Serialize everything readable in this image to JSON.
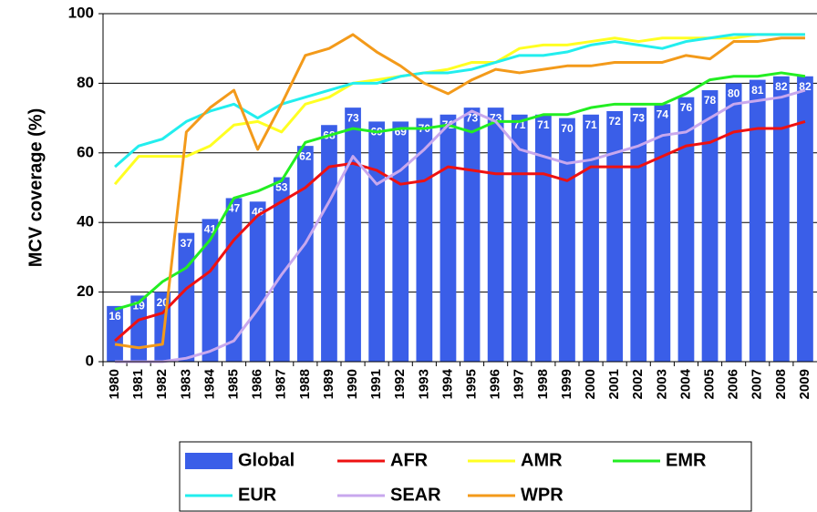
{
  "chart_data": {
    "type": "bar-line",
    "y_label": "MCV coverage (%)",
    "categories": [
      "1980",
      "1981",
      "1982",
      "1983",
      "1984",
      "1985",
      "1986",
      "1987",
      "1988",
      "1989",
      "1990",
      "1991",
      "1992",
      "1993",
      "1994",
      "1995",
      "1996",
      "1997",
      "1998",
      "1999",
      "2000",
      "2001",
      "2002",
      "2003",
      "2004",
      "2005",
      "2006",
      "2007",
      "2008",
      "2009"
    ],
    "ylim": [
      0,
      100
    ],
    "yticks": [
      0,
      20,
      40,
      60,
      80,
      100
    ],
    "grid": true,
    "legend": "bottom",
    "series": [
      {
        "name": "Global",
        "type": "bar",
        "color": "#3a5ee8",
        "values": [
          16,
          19,
          20,
          37,
          41,
          47,
          46,
          53,
          62,
          68,
          73,
          69,
          69,
          70,
          71,
          73,
          73,
          71,
          71,
          70,
          71,
          72,
          73,
          74,
          76,
          78,
          80,
          81,
          82,
          82
        ]
      },
      {
        "name": "AFR",
        "type": "line",
        "color": "#ee1111",
        "values": [
          6,
          12,
          14,
          21,
          26,
          35,
          42,
          46,
          50,
          56,
          57,
          55,
          51,
          52,
          56,
          55,
          54,
          54,
          54,
          52,
          56,
          56,
          56,
          59,
          62,
          63,
          66,
          67,
          67,
          69
        ]
      },
      {
        "name": "AMR",
        "type": "line",
        "color": "#ffff22",
        "values": [
          51,
          59,
          59,
          59,
          62,
          68,
          69,
          66,
          74,
          76,
          80,
          81,
          82,
          83,
          84,
          86,
          86,
          90,
          91,
          91,
          92,
          93,
          92,
          93,
          93,
          93,
          93,
          94,
          94,
          94
        ]
      },
      {
        "name": "EMR",
        "type": "line",
        "color": "#22ee22",
        "values": [
          15,
          17,
          23,
          27,
          35,
          47,
          49,
          52,
          63,
          65,
          67,
          66,
          67,
          67,
          68,
          66,
          69,
          69,
          71,
          71,
          73,
          74,
          74,
          74,
          77,
          81,
          82,
          82,
          83,
          82
        ]
      },
      {
        "name": "EUR",
        "type": "line",
        "color": "#22eeee",
        "values": [
          56,
          62,
          64,
          69,
          72,
          74,
          70,
          74,
          76,
          78,
          80,
          80,
          82,
          83,
          83,
          84,
          86,
          88,
          88,
          89,
          91,
          92,
          91,
          90,
          92,
          93,
          94,
          94,
          94,
          94
        ]
      },
      {
        "name": "SEAR",
        "type": "line",
        "color": "#c8a8ee",
        "values": [
          0,
          0,
          0,
          1,
          3,
          6,
          15,
          25,
          34,
          46,
          59,
          51,
          55,
          61,
          68,
          72,
          69,
          61,
          59,
          57,
          58,
          60,
          62,
          65,
          66,
          70,
          74,
          75,
          76,
          78
        ]
      },
      {
        "name": "WPR",
        "type": "line",
        "color": "#f39a1a",
        "values": [
          5,
          4,
          5,
          66,
          73,
          78,
          61,
          74,
          88,
          90,
          94,
          89,
          85,
          80,
          77,
          81,
          84,
          83,
          84,
          85,
          85,
          86,
          86,
          86,
          88,
          87,
          92,
          92,
          93,
          93
        ]
      }
    ]
  }
}
